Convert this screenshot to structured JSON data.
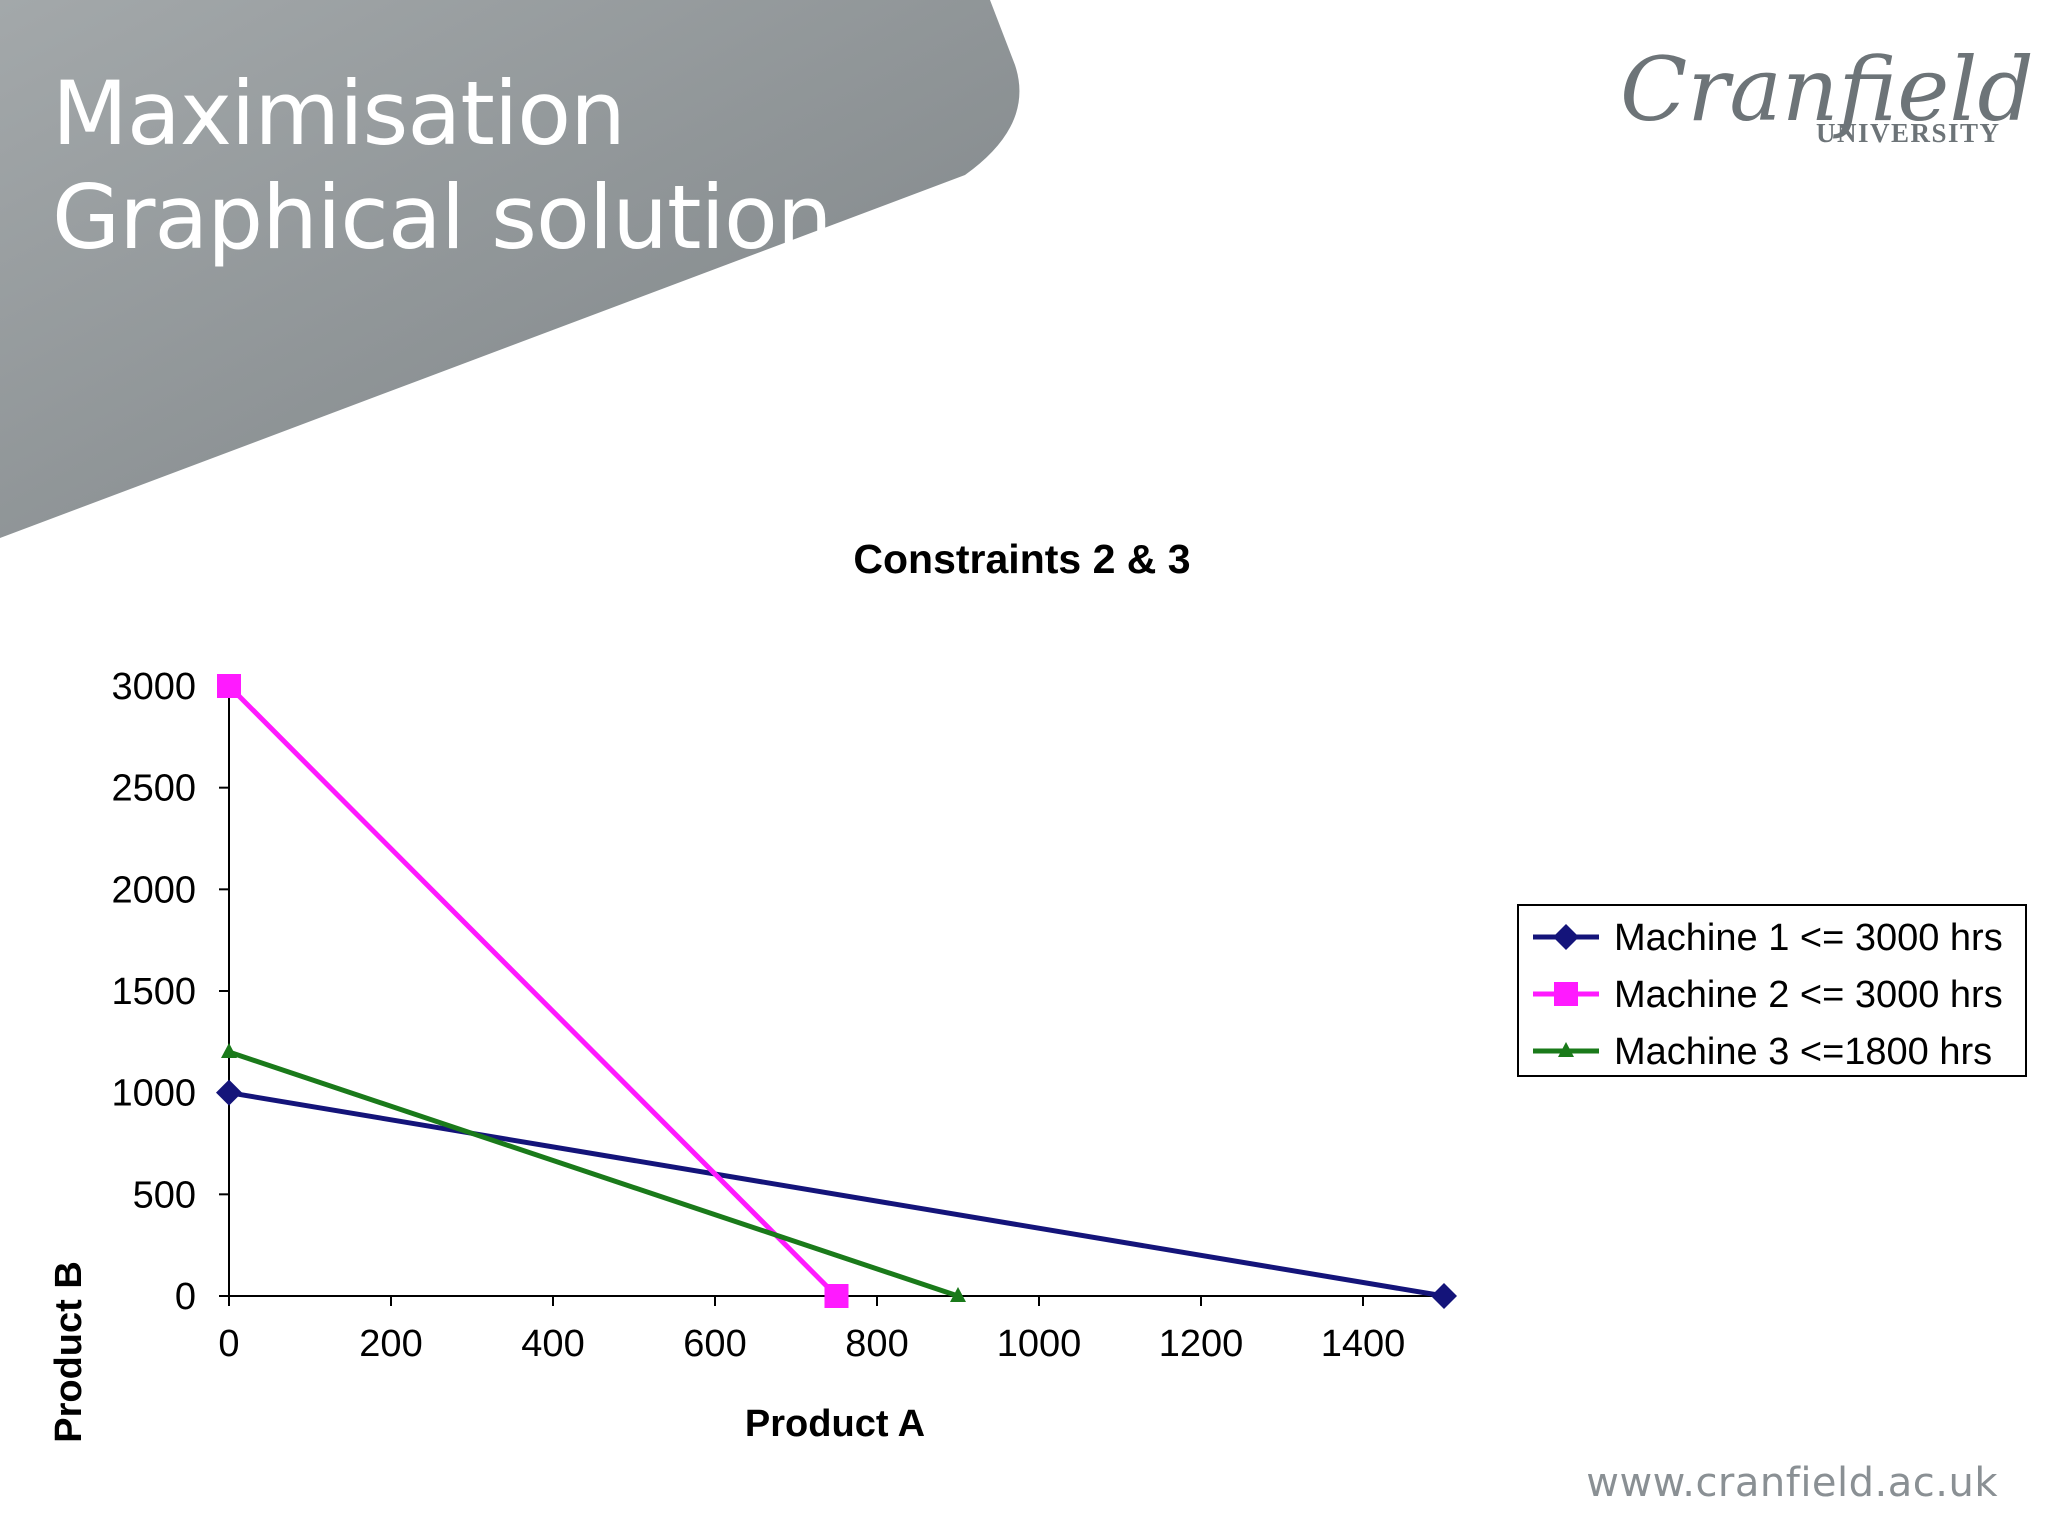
{
  "slide": {
    "title_line1": "Maximisation",
    "title_line2": "Graphical solution",
    "logo_main": "Cranfield",
    "logo_sub": "UNIVERSITY",
    "footer_url": "www.cranfield.ac.uk",
    "banner_color": "#8c9194"
  },
  "chart_data": {
    "type": "line",
    "title": "Constraints 2 & 3",
    "xlabel": "Product A",
    "ylabel": "Product B",
    "xlim": [
      0,
      1500
    ],
    "ylim": [
      0,
      3000
    ],
    "x_ticks": [
      0,
      200,
      400,
      600,
      800,
      1000,
      1200,
      1400
    ],
    "y_ticks": [
      0,
      500,
      1000,
      1500,
      2000,
      2500,
      3000
    ],
    "grid": false,
    "legend_position": "right",
    "series": [
      {
        "name": "Machine 1 <= 3000 hrs",
        "color": "#14147a",
        "marker": "diamond",
        "points": [
          [
            0,
            1000
          ],
          [
            1500,
            0
          ]
        ]
      },
      {
        "name": "Machine 2 <= 3000 hrs",
        "color": "#ff1aff",
        "marker": "square",
        "points": [
          [
            0,
            3000
          ],
          [
            750,
            0
          ]
        ]
      },
      {
        "name": "Machine 3 <=1800 hrs",
        "color": "#1a7a1a",
        "marker": "triangle",
        "points": [
          [
            0,
            1200
          ],
          [
            900,
            0
          ]
        ]
      }
    ]
  }
}
